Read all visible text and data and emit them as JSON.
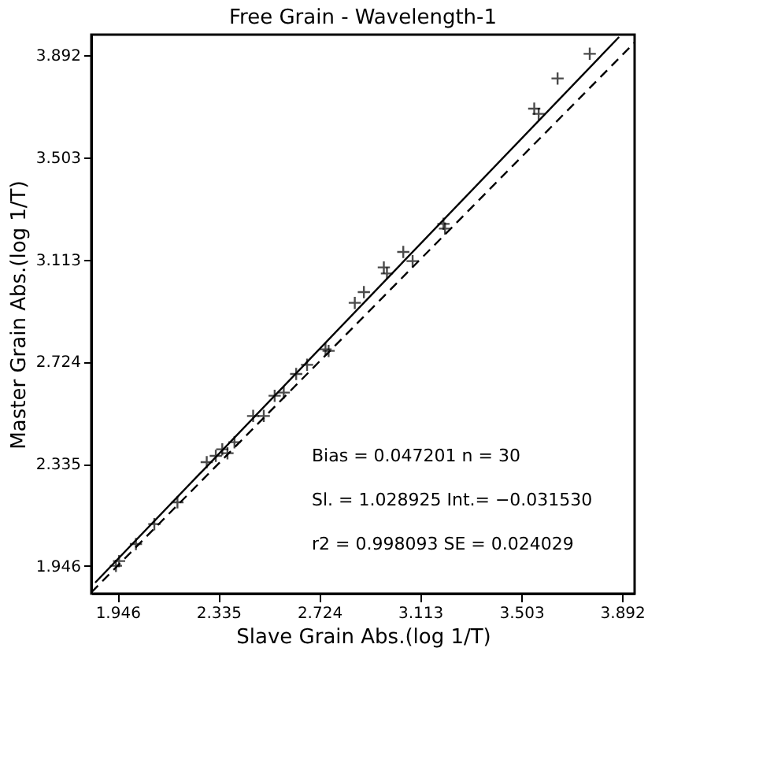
{
  "chart_data": {
    "type": "scatter",
    "title": "Free Grain - Wavelength-1",
    "xlabel": "Slave Grain Abs.(log 1/T)",
    "ylabel": "Master Grain Abs.(log 1/T)",
    "xlim": [
      1.845,
      3.94
    ],
    "ylim": [
      1.84,
      3.97
    ],
    "xticks": [
      1.946,
      2.335,
      2.724,
      3.113,
      3.503,
      3.892
    ],
    "yticks": [
      1.946,
      2.335,
      2.724,
      3.113,
      3.503,
      3.892
    ],
    "grid": false,
    "series": [
      {
        "type": "scatter",
        "marker": "cross",
        "color": "#000000",
        "x": [
          1.94,
          1.952,
          2.017,
          2.088,
          2.177,
          2.29,
          2.325,
          2.35,
          2.37,
          2.397,
          2.469,
          2.51,
          2.552,
          2.587,
          2.635,
          2.677,
          2.748,
          2.76,
          2.861,
          2.896,
          2.973,
          2.985,
          3.048,
          3.084,
          3.203,
          3.209,
          3.553,
          3.57,
          3.643,
          3.767
        ],
        "values": [
          1.946,
          1.964,
          2.029,
          2.105,
          2.188,
          2.341,
          2.365,
          2.39,
          2.375,
          2.417,
          2.517,
          2.517,
          2.594,
          2.606,
          2.677,
          2.712,
          2.771,
          2.765,
          2.948,
          2.989,
          3.083,
          3.06,
          3.142,
          3.107,
          3.249,
          3.231,
          3.688,
          3.668,
          3.803,
          3.897
        ]
      },
      {
        "type": "line",
        "color": "#000000",
        "line_style": "solid",
        "x": [
          1.86,
          3.88
        ],
        "values": [
          1.882,
          3.961
        ]
      },
      {
        "type": "line",
        "color": "#000000",
        "line_style": "dashed",
        "x": [
          1.845,
          3.94
        ],
        "values": [
          1.845,
          3.94
        ]
      }
    ],
    "annotations": [
      "Bias  =  0.047201    n  =  30",
      "Sl.    =  1.028925    Int.=  −0.031530",
      "r2    =  0.998093    SE  =  0.024029"
    ]
  }
}
